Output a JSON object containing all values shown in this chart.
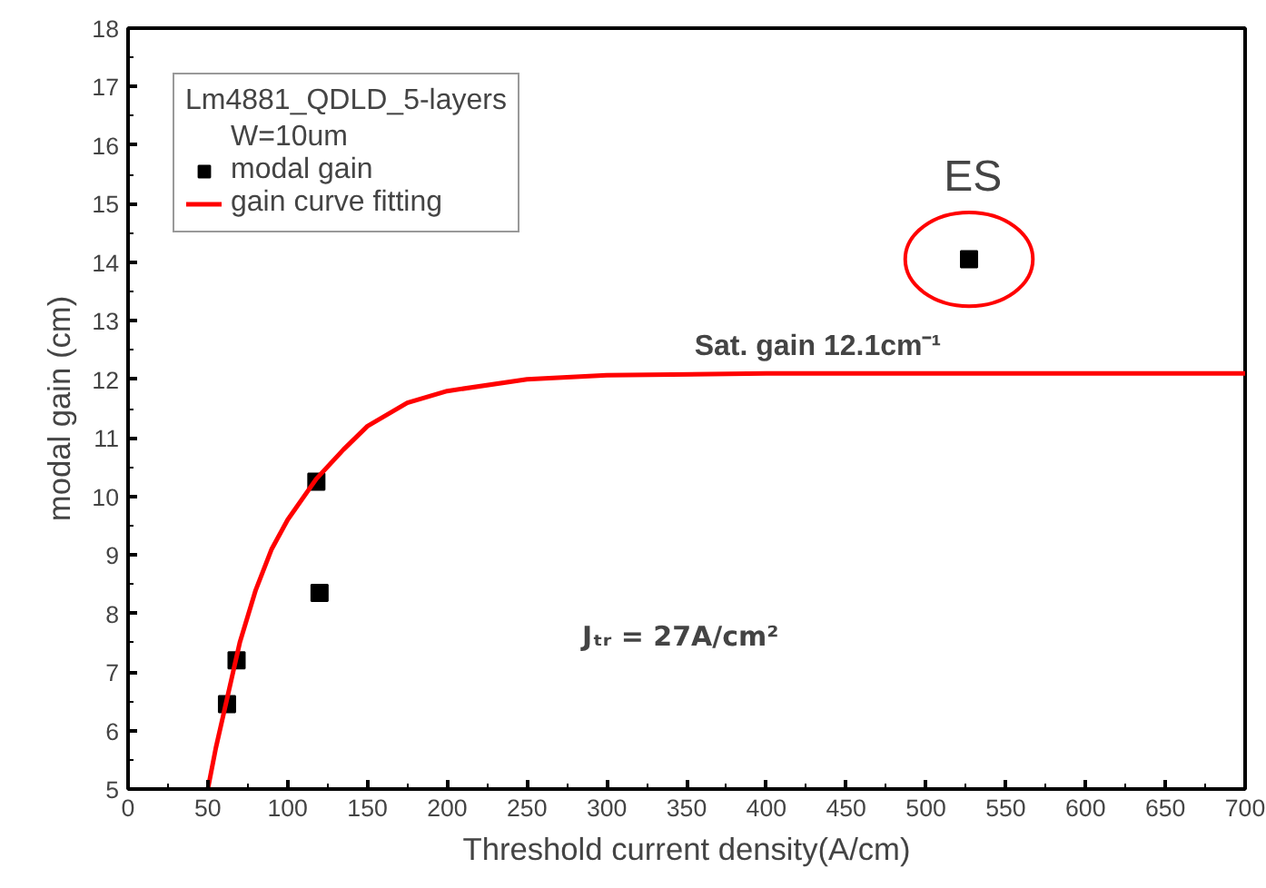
{
  "chart_data": {
    "type": "scatter",
    "xlabel": "Threshold current density(A/cm)",
    "ylabel": "modal gain (cm)",
    "legend_title": "Lm4881_QDLD_5-layers\nW=10um",
    "series": [
      {
        "name": "modal gain",
        "color": "#000000",
        "marker": "square",
        "x": [
          62,
          68,
          118,
          120,
          527
        ],
        "values": [
          6.45,
          7.2,
          10.25,
          8.35,
          14.05
        ]
      },
      {
        "name": "gain curve fitting",
        "type": "line",
        "color": "#ff0000",
        "line_style": "solid",
        "x": [
          50,
          55,
          60,
          65,
          70,
          80,
          90,
          100,
          118,
          135,
          150,
          175,
          200,
          250,
          300,
          400,
          500,
          700
        ],
        "values": [
          5,
          5.7,
          6.3,
          6.9,
          7.5,
          8.4,
          9.1,
          9.6,
          10.3,
          10.8,
          11.2,
          11.6,
          11.8,
          12.0,
          12.07,
          12.1,
          12.1,
          12.1
        ]
      }
    ],
    "annotations": [
      {
        "text": "ES",
        "x": 527,
        "y": 14.05
      },
      {
        "text": "Sat. gain 12.1cm⁻¹",
        "x": 450,
        "y": 12.1
      },
      "Jₜᵣ = 27A/cm²"
    ],
    "xlim": [
      0,
      700
    ],
    "ylim": [
      5,
      18
    ],
    "xticks": [
      0,
      50,
      100,
      150,
      200,
      250,
      300,
      350,
      400,
      450,
      500,
      550,
      600,
      650,
      700
    ],
    "yticks": [
      5,
      6,
      7,
      8,
      9,
      10,
      11,
      12,
      13,
      14,
      15,
      16,
      17,
      18
    ],
    "grid": false,
    "legend": "top left"
  }
}
